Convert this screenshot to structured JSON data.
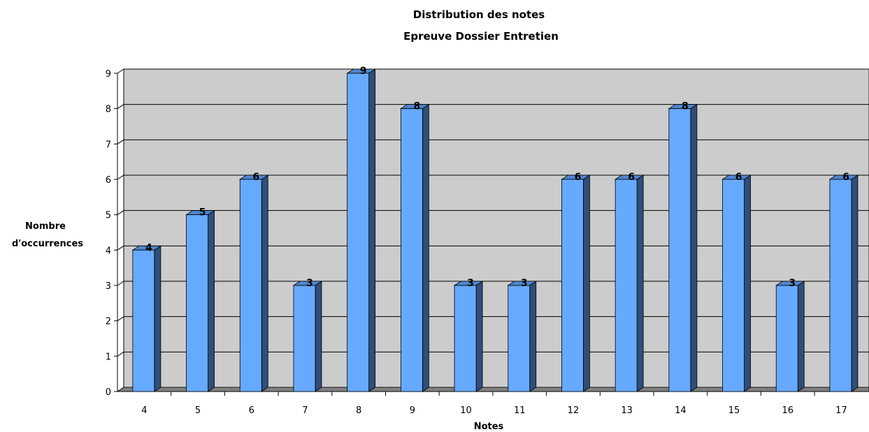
{
  "chart_data": {
    "type": "bar",
    "title": "Distribution des notes",
    "subtitle": "Epreuve Dossier Entretien",
    "xlabel": "Notes",
    "ylabel_lines": [
      "Nombre",
      "d'occurrences"
    ],
    "categories": [
      "4",
      "5",
      "6",
      "7",
      "8",
      "9",
      "10",
      "11",
      "12",
      "13",
      "14",
      "15",
      "16",
      "17"
    ],
    "values": [
      4,
      5,
      6,
      3,
      9,
      8,
      3,
      3,
      6,
      6,
      8,
      6,
      3,
      6
    ],
    "ylim": [
      0,
      9
    ],
    "yticks": [
      0,
      1,
      2,
      3,
      4,
      5,
      6,
      7,
      8,
      9
    ],
    "grid": true,
    "legend": "none",
    "style": "3d",
    "colors": {
      "bar_front": "#66aaff",
      "bar_top": "#4f86d0",
      "bar_side": "#2f4e7a",
      "wall": "#cccccc",
      "floor": "#808080"
    }
  }
}
